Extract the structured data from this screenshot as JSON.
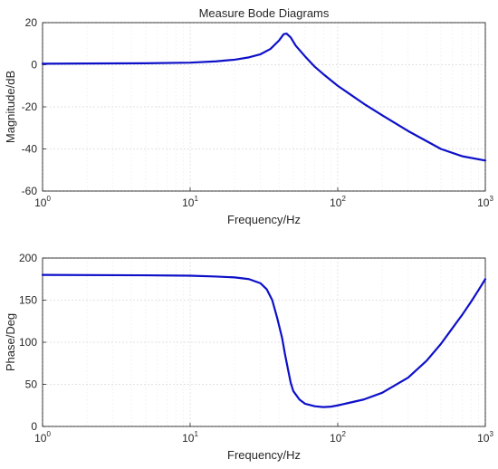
{
  "chart_data": [
    {
      "type": "line",
      "title": "Measure Bode Diagrams",
      "xlabel": "Frequency/Hz",
      "ylabel": "Magnitude/dB",
      "xscale": "log",
      "xlim": [
        1,
        1000
      ],
      "ylim": [
        -60,
        20
      ],
      "grid": true,
      "x_ticks": [
        {
          "base": "10",
          "exp": "0"
        },
        {
          "base": "10",
          "exp": "1"
        },
        {
          "base": "10",
          "exp": "2"
        },
        {
          "base": "10",
          "exp": "3"
        }
      ],
      "y_ticks": [
        "20",
        "0",
        "-20",
        "-40",
        "-60"
      ],
      "line_color": "#0d10c8",
      "series": [
        {
          "x": [
            1,
            2,
            5,
            10,
            15,
            20,
            25,
            30,
            35,
            40,
            43,
            45,
            48,
            52,
            60,
            70,
            80,
            100,
            150,
            200,
            300,
            500,
            700,
            1000
          ],
          "y": [
            0.5,
            0.6,
            0.7,
            1.0,
            1.6,
            2.4,
            3.5,
            5.0,
            7.5,
            11.5,
            14.5,
            14.8,
            13.0,
            9.0,
            4.0,
            -1.0,
            -4.5,
            -10.0,
            -18.5,
            -24.0,
            -31.5,
            -40.0,
            -43.5,
            -45.5
          ]
        }
      ]
    },
    {
      "type": "line",
      "title": "",
      "xlabel": "Frequency/Hz",
      "ylabel": "Phase/Deg",
      "xscale": "log",
      "xlim": [
        1,
        1000
      ],
      "ylim": [
        0,
        200
      ],
      "grid": true,
      "x_ticks": [
        {
          "base": "10",
          "exp": "0"
        },
        {
          "base": "10",
          "exp": "1"
        },
        {
          "base": "10",
          "exp": "2"
        },
        {
          "base": "10",
          "exp": "3"
        }
      ],
      "y_ticks": [
        "200",
        "150",
        "100",
        "50",
        "0"
      ],
      "line_color": "#0d10c8",
      "series": [
        {
          "x": [
            1,
            5,
            10,
            15,
            20,
            25,
            30,
            33,
            36,
            39,
            42,
            44,
            46,
            48,
            50,
            55,
            60,
            70,
            80,
            90,
            100,
            150,
            200,
            300,
            400,
            500,
            600,
            700,
            800,
            900,
            1000
          ],
          "y": [
            180,
            179.5,
            179,
            178,
            177,
            175,
            170,
            163,
            150,
            128,
            105,
            85,
            68,
            52,
            42,
            32,
            27,
            24,
            23,
            23.5,
            25,
            32,
            40,
            58,
            78,
            98,
            117,
            133,
            148,
            162,
            175
          ]
        }
      ]
    }
  ]
}
